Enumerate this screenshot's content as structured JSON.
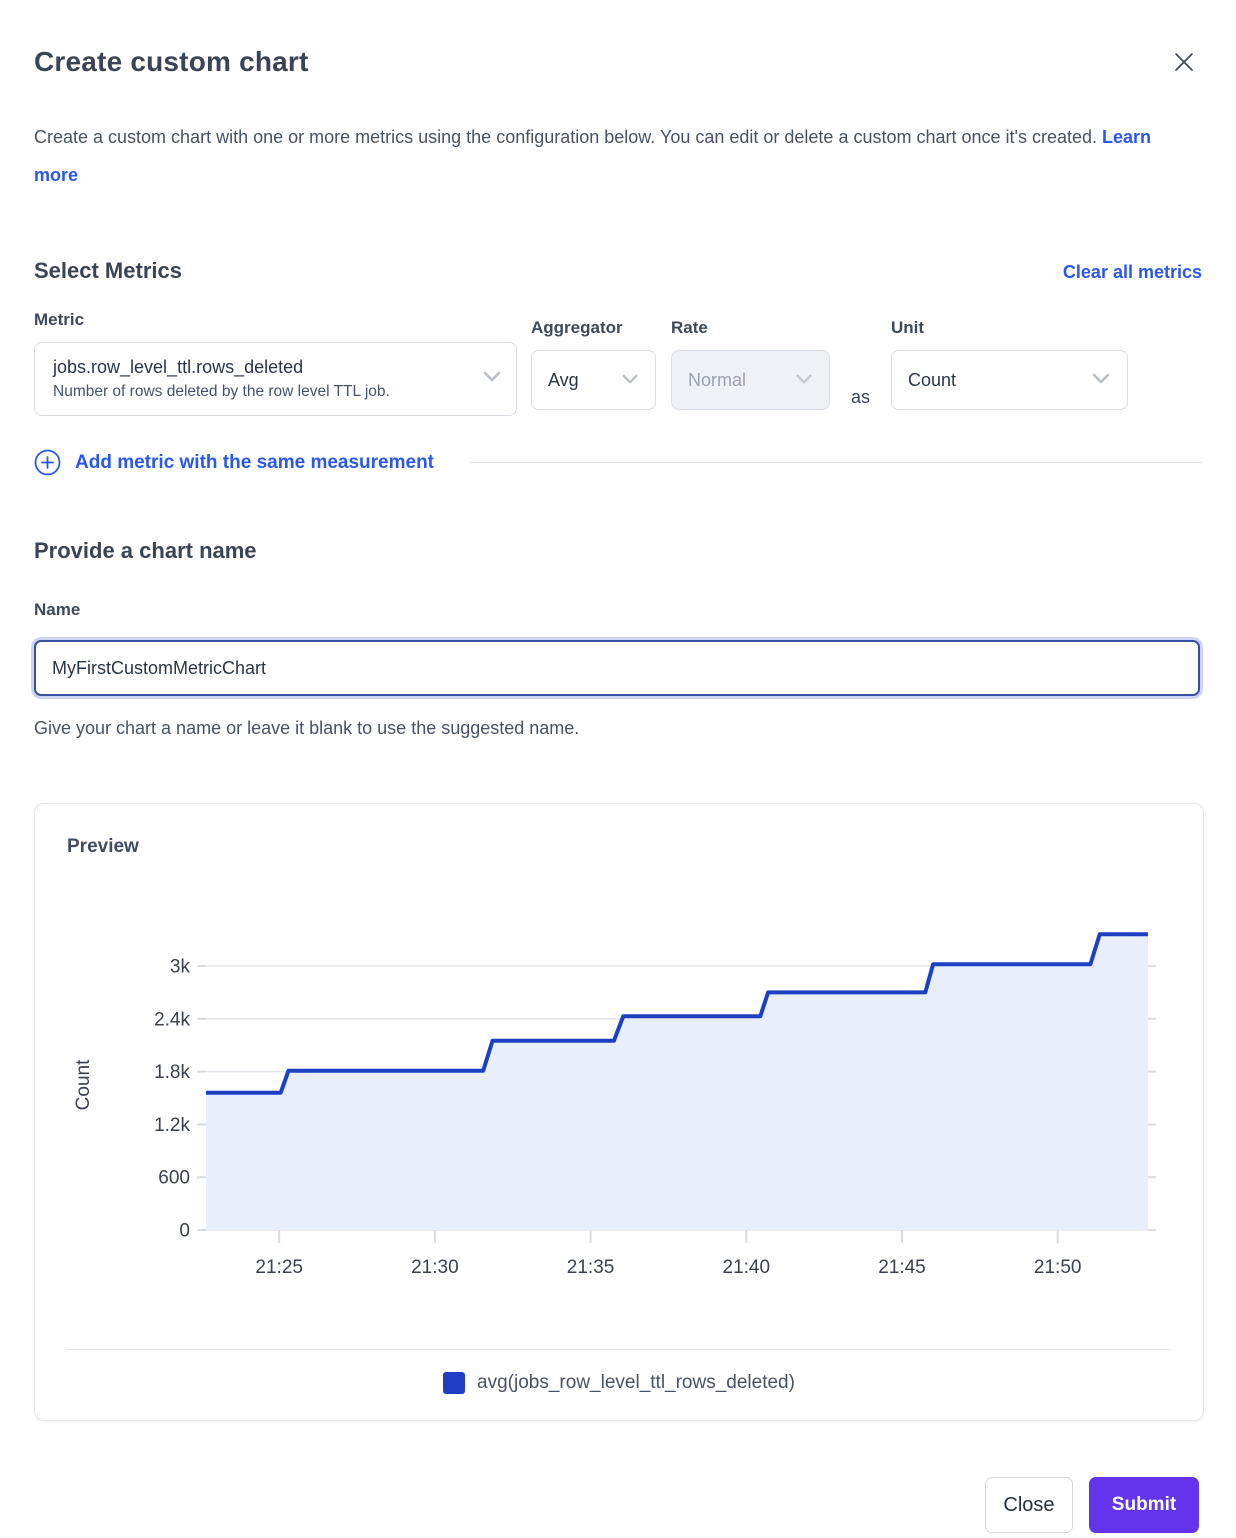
{
  "modal": {
    "title": "Create custom chart",
    "description": "Create a custom chart with one or more metrics using the configuration below. You can edit or delete a custom chart once it's created.",
    "learn_more_label": "Learn more"
  },
  "metrics_section": {
    "heading": "Select Metrics",
    "clear_all_label": "Clear all metrics",
    "metric": {
      "label": "Metric",
      "value": "jobs.row_level_ttl.rows_deleted",
      "description": "Number of rows deleted by the row level TTL job."
    },
    "aggregator": {
      "label": "Aggregator",
      "value": "Avg"
    },
    "rate": {
      "label": "Rate",
      "value": "Normal",
      "disabled": true
    },
    "as_text": "as",
    "unit": {
      "label": "Unit",
      "value": "Count"
    },
    "add_metric_label": "Add metric with the same measurement"
  },
  "name_section": {
    "heading": "Provide a chart name",
    "label": "Name",
    "value": "MyFirstCustomMetricChart",
    "helper": "Give your chart a name or leave it blank to use the suggested name."
  },
  "preview": {
    "heading": "Preview"
  },
  "footer": {
    "close_label": "Close",
    "submit_label": "Submit"
  },
  "colors": {
    "link": "#2957f0",
    "accent_purple": "#6333ee",
    "line": "#1d3fc4",
    "area_fill": "#e9eefb",
    "legend_swatch": "#1e3ec8",
    "gridline": "#e4e7ec",
    "tick": "#d8dbe0",
    "axis_text": "#39414f"
  },
  "chart_data": {
    "type": "area",
    "step": true,
    "title": "Preview",
    "ylabel": "Count",
    "legend": [
      "avg(jobs_row_level_ttl_rows_deleted)"
    ],
    "legend_position": "bottom",
    "grid": "horizontal",
    "x_unit": "minutes after 21:00",
    "x_range": [
      22.65,
      52.9
    ],
    "y_range": [
      0,
      3600
    ],
    "x_ticks": [
      {
        "t": 25,
        "label": "21:25"
      },
      {
        "t": 30,
        "label": "21:30"
      },
      {
        "t": 35,
        "label": "21:35"
      },
      {
        "t": 40,
        "label": "21:40"
      },
      {
        "t": 45,
        "label": "21:45"
      },
      {
        "t": 50,
        "label": "21:50"
      }
    ],
    "y_ticks": [
      {
        "v": 0,
        "label": "0"
      },
      {
        "v": 600,
        "label": "600"
      },
      {
        "v": 1200,
        "label": "1.2k"
      },
      {
        "v": 1800,
        "label": "1.8k"
      },
      {
        "v": 2400,
        "label": "2.4k"
      },
      {
        "v": 3000,
        "label": "3k"
      }
    ],
    "series": [
      {
        "name": "avg(jobs_row_level_ttl_rows_deleted)",
        "points": [
          {
            "t": 22.65,
            "v": 1560
          },
          {
            "t": 25.05,
            "v": 1560
          },
          {
            "t": 25.3,
            "v": 1810
          },
          {
            "t": 31.55,
            "v": 1810
          },
          {
            "t": 31.85,
            "v": 2150
          },
          {
            "t": 35.75,
            "v": 2150
          },
          {
            "t": 36.05,
            "v": 2430
          },
          {
            "t": 40.45,
            "v": 2430
          },
          {
            "t": 40.7,
            "v": 2700
          },
          {
            "t": 45.75,
            "v": 2700
          },
          {
            "t": 46.0,
            "v": 3020
          },
          {
            "t": 51.05,
            "v": 3020
          },
          {
            "t": 51.35,
            "v": 3360
          },
          {
            "t": 52.9,
            "v": 3360
          }
        ]
      }
    ]
  }
}
